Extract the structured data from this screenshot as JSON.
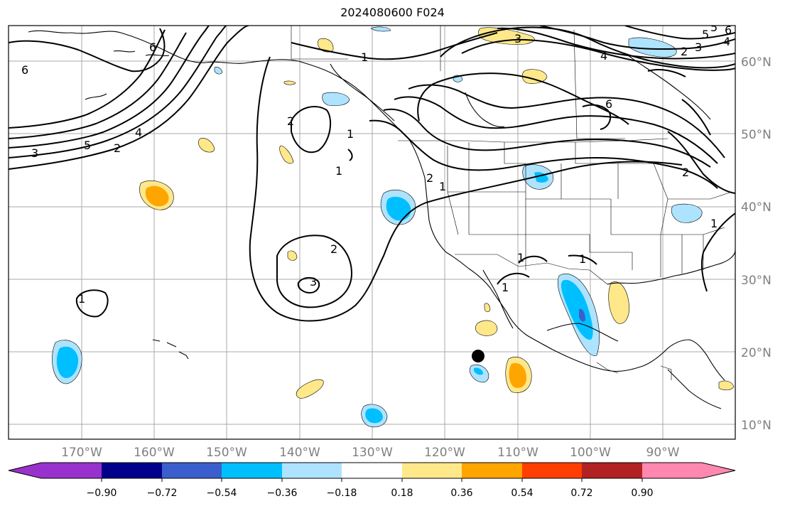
{
  "title": "2024080600 F024",
  "map": {
    "lat_ticks": [
      "60°N",
      "50°N",
      "40°N",
      "30°N",
      "20°N",
      "10°N"
    ],
    "lon_ticks": [
      "170°W",
      "160°W",
      "150°W",
      "140°W",
      "130°W",
      "120°W",
      "110°W",
      "100°W",
      "90°W"
    ],
    "contour_labels": [
      "6",
      "6",
      "5",
      "4",
      "3",
      "2",
      "1",
      "2",
      "1",
      "2",
      "3",
      "1",
      "1",
      "2",
      "1",
      "3",
      "4",
      "6",
      "5",
      "2",
      "3",
      "4",
      "5",
      "6",
      "1",
      "1",
      "2",
      "1",
      "1"
    ]
  },
  "colorbar": {
    "ticks": [
      "−0.90",
      "−0.72",
      "−0.54",
      "−0.36",
      "−0.18",
      "0.18",
      "0.36",
      "0.54",
      "0.72",
      "0.90"
    ],
    "colors": [
      "#9932cc",
      "#00008b",
      "#3a5fcd",
      "#00bfff",
      "#aee3ff",
      "#ffffff",
      "#ffe88a",
      "#ffa500",
      "#ff3e00",
      "#b22222",
      "#ff88b0",
      "#ff88b0"
    ]
  }
}
